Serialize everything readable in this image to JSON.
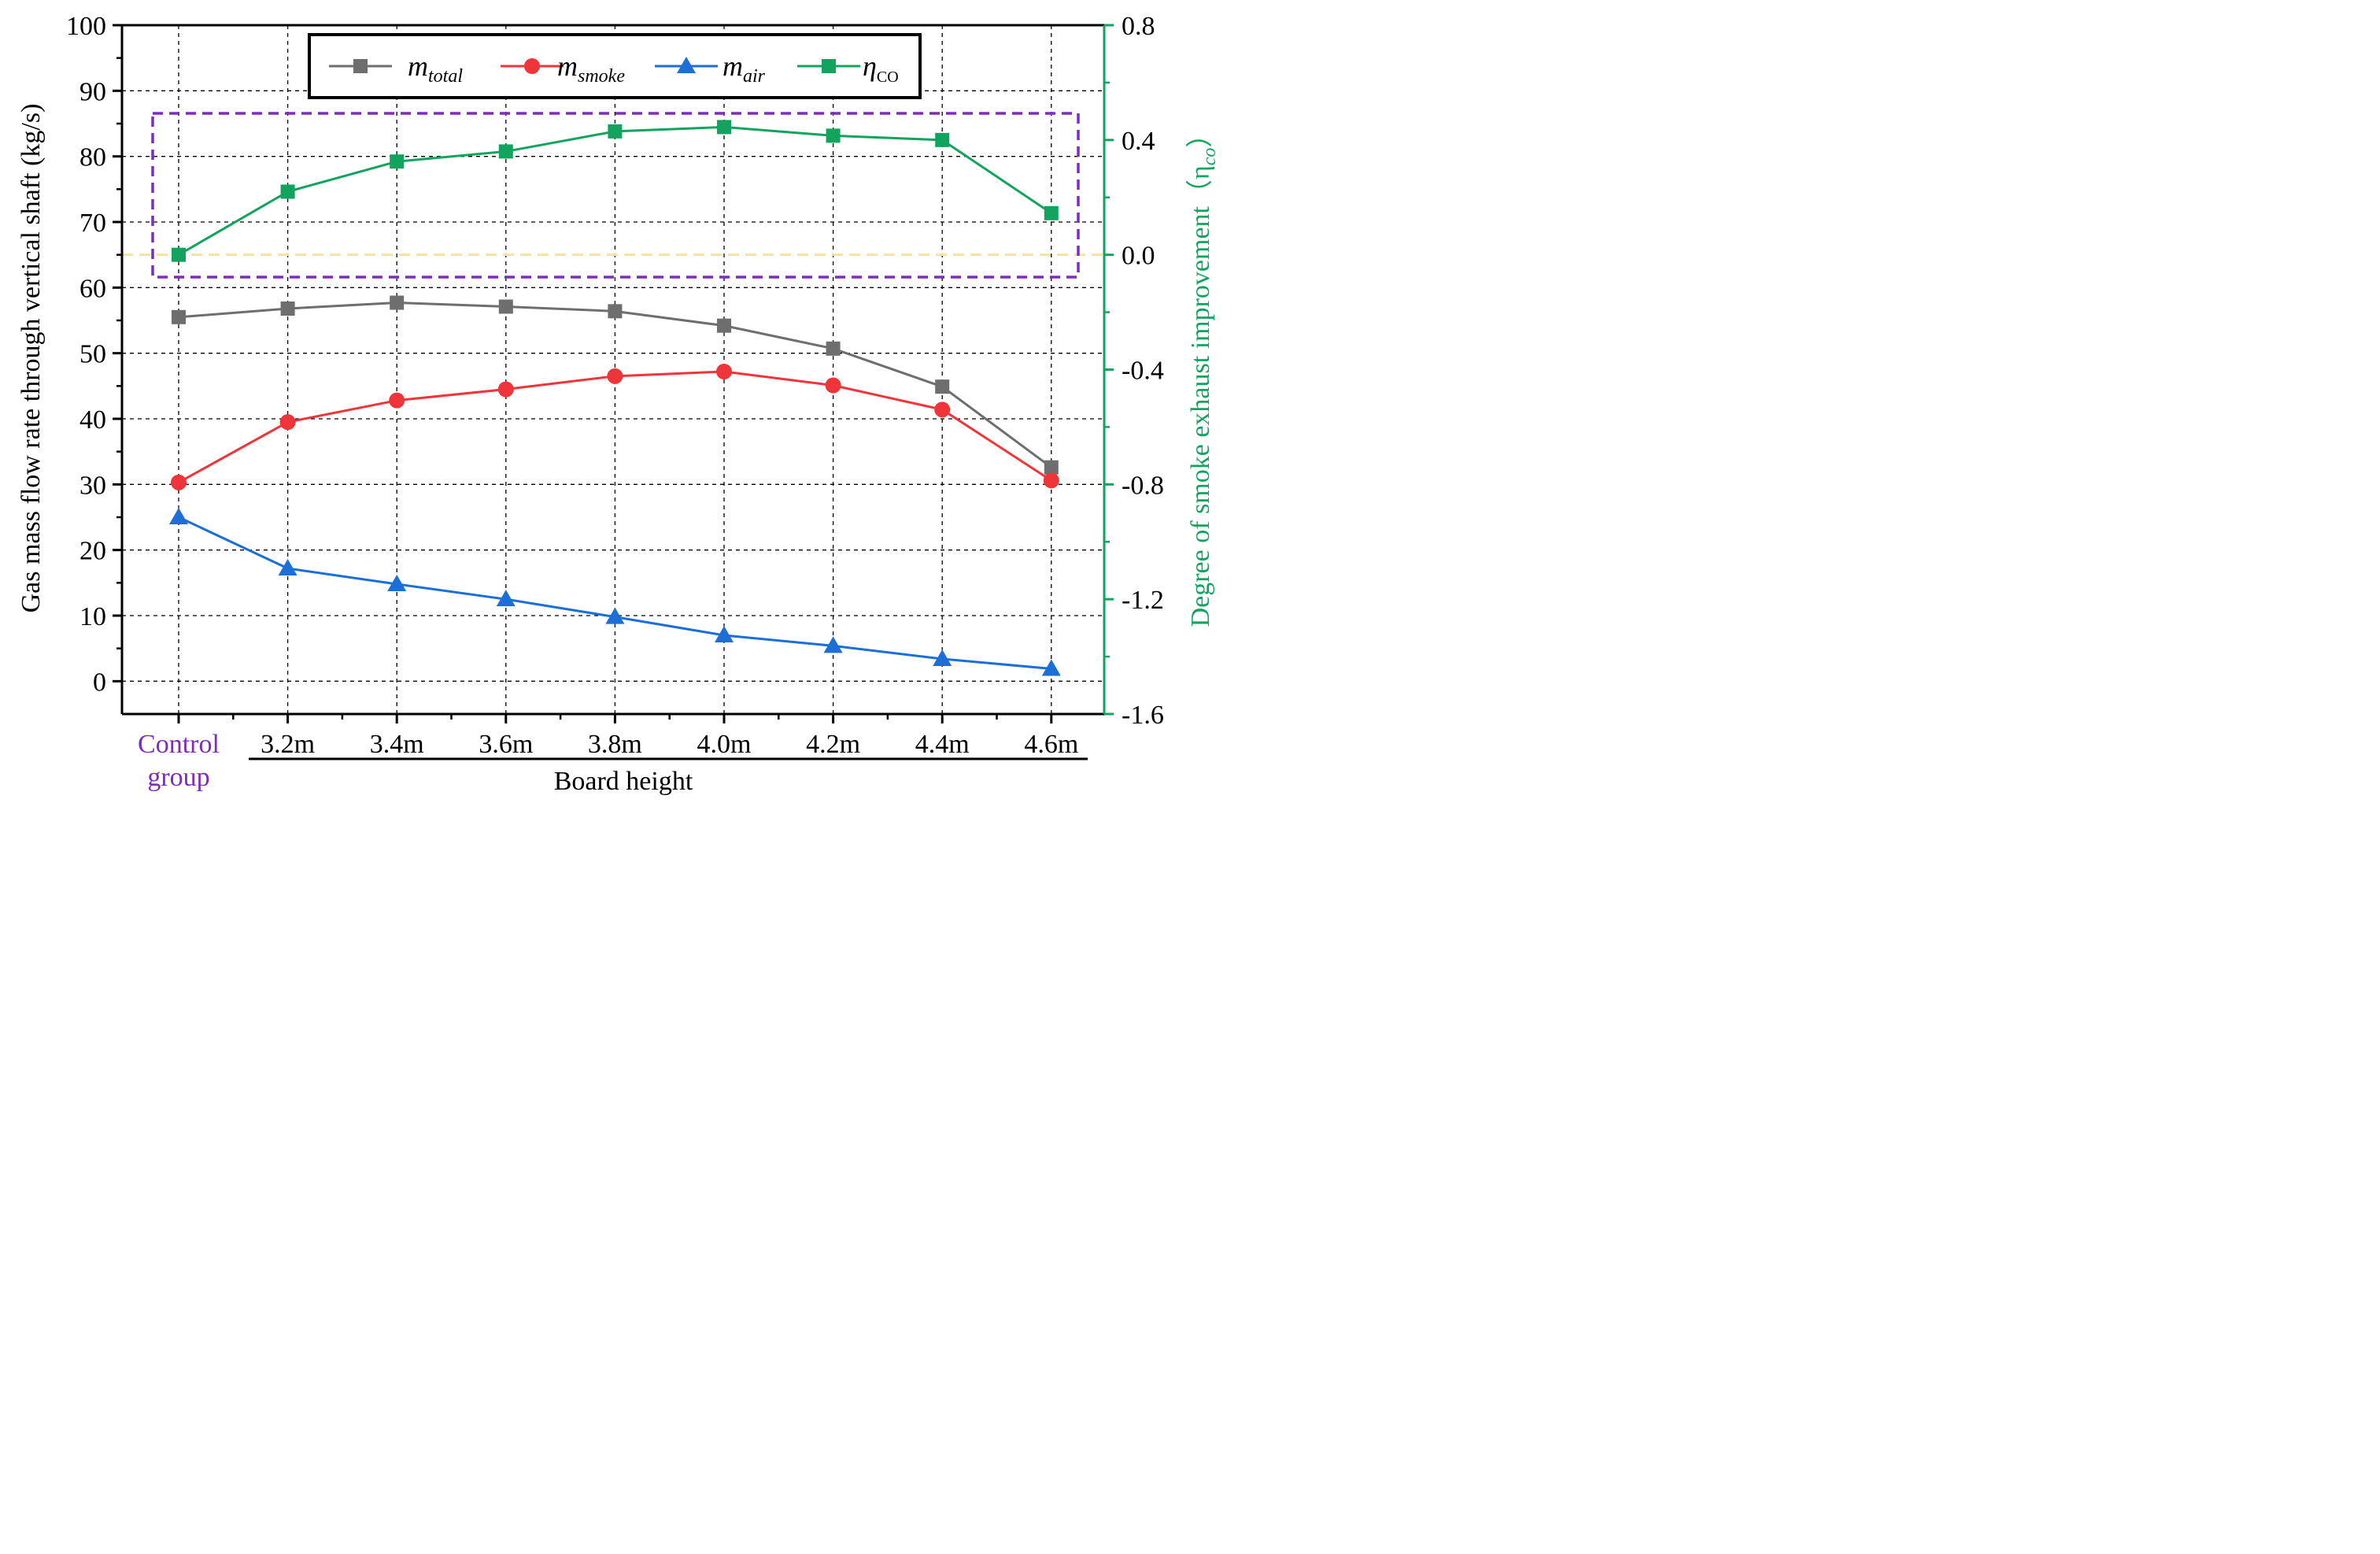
{
  "chart_data": {
    "type": "line",
    "categories": [
      "Control group",
      "3.2m",
      "3.4m",
      "3.6m",
      "3.8m",
      "4.0m",
      "4.2m",
      "4.4m",
      "4.6m"
    ],
    "xlabel": "Board height",
    "control_group_label": [
      "Control",
      "group"
    ],
    "left_axis": {
      "label": "Gas mass flow rate through vertical shaft (kg/s)",
      "ylim": [
        -5,
        100
      ],
      "ticks": [
        0,
        10,
        20,
        30,
        40,
        50,
        60,
        70,
        80,
        90,
        100
      ]
    },
    "right_axis": {
      "label": "Degree of smoke exhaust improvement（η",
      "label_sub": "co",
      "label_close": "）",
      "ylim": [
        -1.6,
        0.8
      ],
      "ticks": [
        "-1.6",
        "-1.2",
        "-0.8",
        "-0.4",
        "0.0",
        "0.4",
        "0.8"
      ]
    },
    "grid": true,
    "legend_position": "top-center",
    "reference_line": {
      "axis": "right",
      "value": 0.0
    },
    "series": [
      {
        "name": "m",
        "name_sub": "total",
        "axis": "left",
        "marker": "square",
        "color": "#6e6e6e",
        "values": [
          55.5,
          56.8,
          57.7,
          57.1,
          56.4,
          54.2,
          50.7,
          44.9,
          32.6
        ]
      },
      {
        "name": "m",
        "name_sub": "smoke",
        "axis": "left",
        "marker": "circle",
        "color": "#f0353a",
        "values": [
          30.3,
          39.5,
          42.8,
          44.5,
          46.5,
          47.2,
          45.1,
          41.4,
          30.6
        ]
      },
      {
        "name": "m",
        "name_sub": "air",
        "axis": "left",
        "marker": "triangle",
        "color": "#1b6fd6",
        "values": [
          25.0,
          17.2,
          14.8,
          12.5,
          9.8,
          7.0,
          5.4,
          3.4,
          1.9
        ]
      },
      {
        "name": "η",
        "name_sub": "CO",
        "axis": "right",
        "marker": "square",
        "color": "#12a45e",
        "values": [
          0.0,
          0.22,
          0.325,
          0.36,
          0.43,
          0.445,
          0.415,
          0.4,
          0.145
        ]
      }
    ],
    "colors": {
      "right_axis": "#12a45e",
      "highlight_box": "#7e2cbf",
      "control_label": "#7e2cbf",
      "reference_line": "#f7e3a1"
    }
  }
}
